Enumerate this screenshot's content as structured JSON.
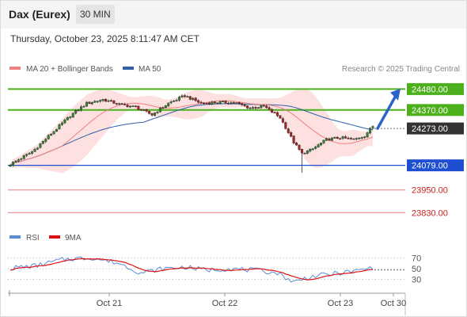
{
  "header": {
    "title": "Dax (Eurex)",
    "timeframe": "30 MIN",
    "timestamp": "Thursday, October 23, 2025 8:11:47 AM CET"
  },
  "legend": {
    "ma20_label": "MA 20 + Bollinger Bands",
    "ma50_label": "MA 50",
    "credit": "Research © 2025 Trading Central",
    "rsi_label": "RSI",
    "rsi_ma_label": "9MA"
  },
  "colors": {
    "resistance": "#4caf1c",
    "support": "#1f4fd1",
    "weak_level": "#f0a0a0",
    "ma20": "#f08080",
    "ma50": "#2e5fa8",
    "bollinger_fill": "#fde0e0",
    "candle_up": "#2e8b2e",
    "candle_down": "#b22222",
    "rsi": "#5b8dd6",
    "rsi_ma": "#dd1111",
    "arrow": "#2a63c9"
  },
  "chart_data": {
    "type": "candlestick",
    "price_axis_range": [
      23790,
      24540
    ],
    "key_levels": [
      {
        "value": "24480.00",
        "type": "resistance"
      },
      {
        "value": "24370.00",
        "type": "resistance"
      },
      {
        "value": "24273.00",
        "type": "current"
      },
      {
        "value": "24079.00",
        "type": "support"
      },
      {
        "value": "23950.00",
        "type": "minor"
      },
      {
        "value": "23830.00",
        "type": "minor"
      }
    ],
    "x_ticks": [
      "Oct 21",
      "Oct 22",
      "Oct 23",
      "Oct 30"
    ],
    "ohlc_anchors": [
      {
        "i": 0,
        "close": 24085
      },
      {
        "i": 8,
        "close": 24150
      },
      {
        "i": 15,
        "close": 24245
      },
      {
        "i": 22,
        "close": 24340
      },
      {
        "i": 28,
        "close": 24405
      },
      {
        "i": 34,
        "close": 24425
      },
      {
        "i": 40,
        "close": 24400
      },
      {
        "i": 46,
        "close": 24385
      },
      {
        "i": 52,
        "close": 24345
      },
      {
        "i": 58,
        "close": 24405
      },
      {
        "i": 64,
        "close": 24445
      },
      {
        "i": 70,
        "close": 24405
      },
      {
        "i": 76,
        "close": 24410
      },
      {
        "i": 82,
        "close": 24410
      },
      {
        "i": 88,
        "close": 24380
      },
      {
        "i": 93,
        "close": 24390
      },
      {
        "i": 99,
        "close": 24330
      },
      {
        "i": 104,
        "close": 24200
      },
      {
        "i": 107,
        "close": 24140
      },
      {
        "i": 111,
        "close": 24165
      },
      {
        "i": 116,
        "close": 24215
      },
      {
        "i": 121,
        "close": 24225
      },
      {
        "i": 126,
        "close": 24215
      },
      {
        "i": 130,
        "close": 24235
      },
      {
        "i": 133,
        "close": 24285
      }
    ],
    "forecast_arrow": {
      "from": 24273,
      "to": 24470
    },
    "rsi_axis_ticks": [
      70,
      50,
      30
    ],
    "rsi_range": [
      10,
      90
    ],
    "rsi_anchors": [
      {
        "i": 0,
        "v": 51
      },
      {
        "i": 10,
        "v": 56
      },
      {
        "i": 20,
        "v": 68
      },
      {
        "i": 30,
        "v": 70
      },
      {
        "i": 40,
        "v": 60
      },
      {
        "i": 48,
        "v": 42
      },
      {
        "i": 56,
        "v": 50
      },
      {
        "i": 64,
        "v": 53
      },
      {
        "i": 72,
        "v": 47
      },
      {
        "i": 80,
        "v": 50
      },
      {
        "i": 90,
        "v": 47
      },
      {
        "i": 98,
        "v": 42
      },
      {
        "i": 104,
        "v": 25
      },
      {
        "i": 110,
        "v": 35
      },
      {
        "i": 118,
        "v": 40
      },
      {
        "i": 126,
        "v": 45
      },
      {
        "i": 133,
        "v": 52
      }
    ]
  }
}
